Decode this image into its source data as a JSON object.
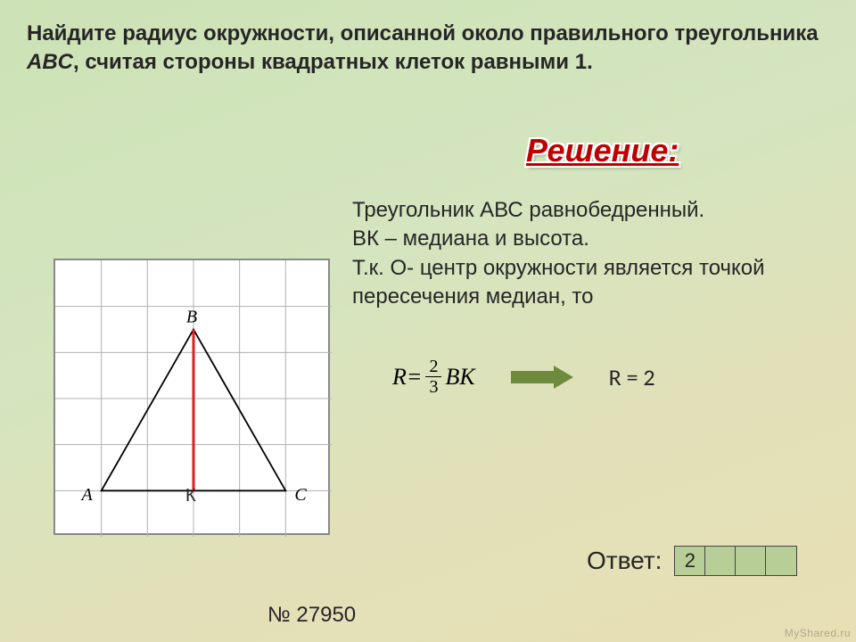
{
  "question": {
    "line1_prefix": "Найдите радиус окружности, описанной около правильного треугольника ",
    "line2_italic": "ABC",
    "line2_rest": ", считая стороны квадратных клеток равными 1."
  },
  "solution": {
    "title": "Решение:",
    "body": "Треугольник АВС равнобедренный.\nВК – медиана и высота.\nТ.к. О- центр окружности является точкой пересечения медиан, то"
  },
  "formula": {
    "lhs": "R",
    "eq": " = ",
    "num": "2",
    "den": "3",
    "rhs": "ВК"
  },
  "r_result": "R = 2",
  "figure": {
    "grid_cells": 6,
    "grid_color": "#b0b0b0",
    "border_color": "#888888",
    "bg_color": "#ffffff",
    "triangle": {
      "A": {
        "gx": 1,
        "gy": 5
      },
      "B": {
        "gx": 3,
        "gy": 1.5
      },
      "C": {
        "gx": 5,
        "gy": 5
      },
      "K": {
        "gx": 3,
        "gy": 5
      }
    },
    "triangle_color": "#000000",
    "median_color": "#e21f1f",
    "labels": {
      "A": "A",
      "B": "B",
      "C": "C",
      "K": "К"
    },
    "label_font": "italic 20px Times New Roman"
  },
  "answer": {
    "label": "Ответ:",
    "cells": [
      "2",
      "",
      "",
      ""
    ]
  },
  "task_number": "№ 27950",
  "watermark": "MyShared.ru",
  "colors": {
    "accent_red": "#c00000",
    "arrow": "#6e8b3d",
    "answer_bg": "#b7ce96"
  }
}
